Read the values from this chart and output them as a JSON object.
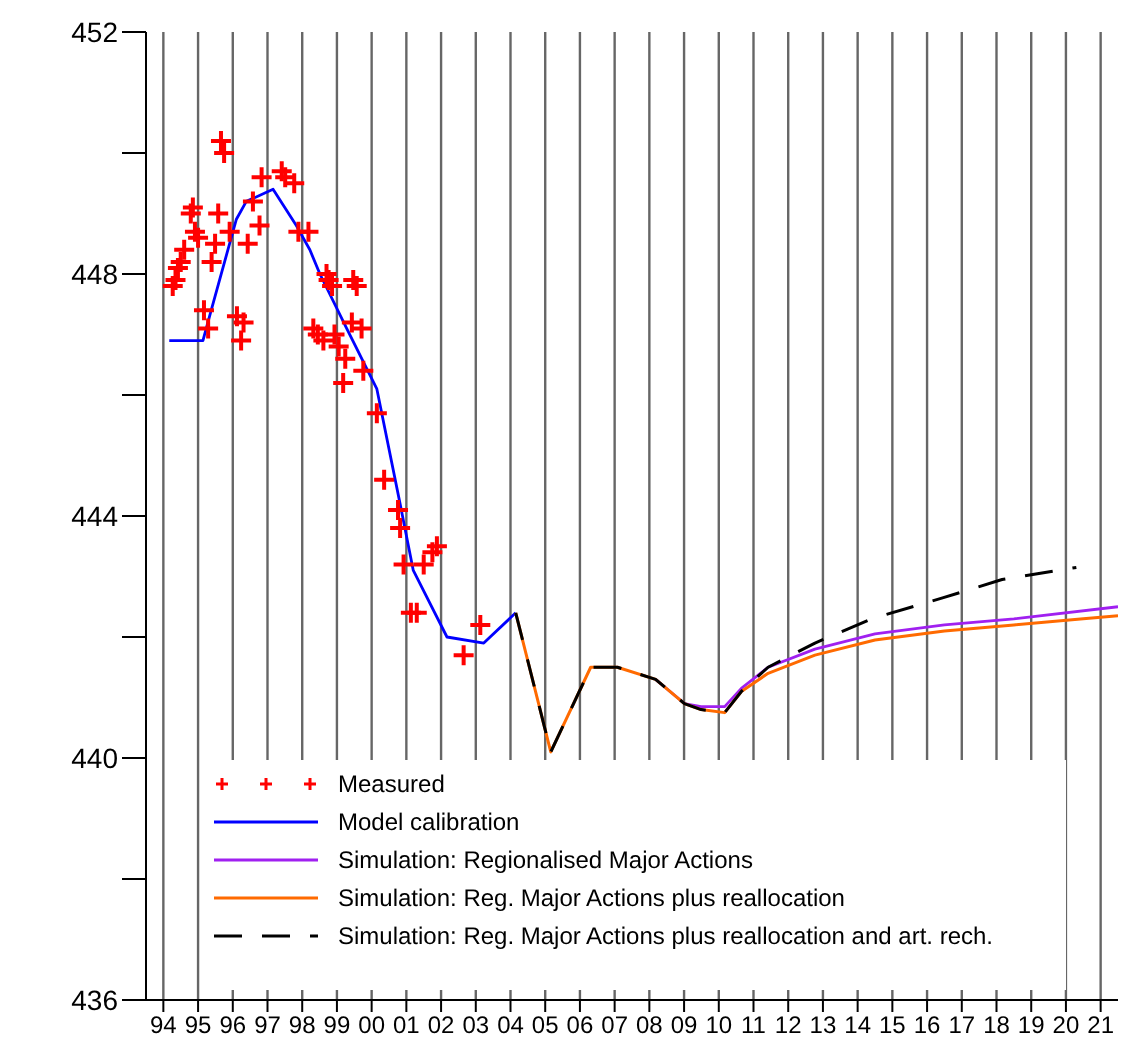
{
  "chart_data": {
    "type": "line",
    "xlim": [
      1993.5,
      2021.5
    ],
    "xticks": [
      {
        "value": 1994,
        "label": "94"
      },
      {
        "value": 1995,
        "label": "95"
      },
      {
        "value": 1996,
        "label": "96"
      },
      {
        "value": 1997,
        "label": "97"
      },
      {
        "value": 1998,
        "label": "98"
      },
      {
        "value": 1999,
        "label": "99"
      },
      {
        "value": 2000,
        "label": "00"
      },
      {
        "value": 2001,
        "label": "01"
      },
      {
        "value": 2002,
        "label": "02"
      },
      {
        "value": 2003,
        "label": "03"
      },
      {
        "value": 2004,
        "label": "04"
      },
      {
        "value": 2005,
        "label": "05"
      },
      {
        "value": 2006,
        "label": "06"
      },
      {
        "value": 2007,
        "label": "07"
      },
      {
        "value": 2008,
        "label": "08"
      },
      {
        "value": 2009,
        "label": "09"
      },
      {
        "value": 2010,
        "label": "10"
      },
      {
        "value": 2011,
        "label": "11"
      },
      {
        "value": 2012,
        "label": "12"
      },
      {
        "value": 2013,
        "label": "13"
      },
      {
        "value": 2014,
        "label": "14"
      },
      {
        "value": 2015,
        "label": "15"
      },
      {
        "value": 2016,
        "label": "16"
      },
      {
        "value": 2017,
        "label": "17"
      },
      {
        "value": 2018,
        "label": "18"
      },
      {
        "value": 2019,
        "label": "19"
      },
      {
        "value": 2020,
        "label": "20"
      },
      {
        "value": 2021,
        "label": "21"
      }
    ],
    "ylim": [
      436,
      452
    ],
    "yticks": [
      436,
      {
        "value": 438,
        "label": null
      },
      440,
      {
        "value": 442,
        "label": null
      },
      444,
      {
        "value": 446,
        "label": null
      },
      448,
      {
        "value": 450,
        "label": null
      },
      452
    ],
    "grid": "x",
    "legend": "bottom",
    "series": [
      {
        "name": "Measured",
        "type": "scatter",
        "marker": "cross",
        "color": "#ff0000",
        "x": [
          1995.66,
          1995.75,
          1994.27,
          1994.35,
          1994.42,
          1994.5,
          1994.6,
          1994.85,
          1994.79,
          1994.91,
          1995.0,
          1995.58,
          1995.49,
          1995.39,
          1995.17,
          1995.29,
          1996.12,
          1996.31,
          1996.24,
          1995.91,
          1996.43,
          1996.58,
          1996.77,
          1996.83,
          1997.41,
          1997.51,
          1997.77,
          1997.89,
          1998.18,
          1998.7,
          1998.76,
          1998.86,
          1999.47,
          1999.57,
          1998.32,
          1998.45,
          1998.61,
          1998.93,
          1999.05,
          1999.43,
          1999.71,
          1999.24,
          1999.76,
          1999.18,
          2000.15,
          2000.36,
          2000.76,
          2000.82,
          2000.92,
          2001.5,
          2001.75,
          2001.88,
          2001.13,
          2001.3,
          2002.65,
          2003.13
        ],
        "values": [
          450.2,
          450.0,
          447.8,
          447.9,
          448.1,
          448.2,
          448.4,
          449.1,
          449.0,
          448.7,
          448.6,
          449.0,
          448.5,
          448.2,
          447.4,
          447.1,
          447.3,
          447.2,
          446.9,
          448.7,
          448.5,
          449.2,
          448.8,
          449.6,
          449.7,
          449.6,
          449.5,
          448.7,
          448.7,
          448.0,
          447.9,
          447.8,
          447.9,
          447.8,
          447.1,
          447.0,
          446.9,
          447.0,
          446.8,
          447.2,
          447.1,
          446.6,
          446.4,
          446.2,
          445.7,
          444.6,
          444.1,
          443.8,
          443.2,
          443.2,
          443.4,
          443.5,
          442.4,
          442.4,
          441.7,
          442.2
        ]
      },
      {
        "name": "Model calibration",
        "color": "#0000ff",
        "x": [
          1994.17,
          1995.14,
          1995.33,
          1996.1,
          1996.39,
          1997.16,
          1997.83,
          1998.22,
          1998.51,
          1999.28,
          2000.15,
          2000.82,
          2001.2,
          2002.17,
          2003.23,
          2004.15
        ],
        "values": [
          446.9,
          446.9,
          447.3,
          448.9,
          449.2,
          449.4,
          448.8,
          448.4,
          448.0,
          447.1,
          446.1,
          444.2,
          443.1,
          442.0,
          441.9,
          442.4
        ]
      },
      {
        "name": "Simulation: Regionalised Major Actions",
        "color": "#a020f0",
        "x": [
          2008.18,
          2009.01,
          2009.49,
          2010.17,
          2010.65,
          2011.42,
          2012.77,
          2014.5,
          2016.5,
          2018.5,
          2021.5
        ],
        "values": [
          441.3,
          440.9,
          440.85,
          440.85,
          441.15,
          441.5,
          441.8,
          442.05,
          442.2,
          442.3,
          442.5
        ]
      },
      {
        "name": "Simulation: Reg. Major Actions plus reallocation",
        "color": "#ff6a00",
        "x": [
          2004.15,
          2005.16,
          2006.31,
          2007.08,
          2008.18,
          2009.01,
          2009.49,
          2010.17,
          2010.65,
          2011.42,
          2012.77,
          2014.5,
          2016.5,
          2018.5,
          2020.5,
          2021.5
        ],
        "values": [
          442.4,
          440.1,
          441.5,
          441.5,
          441.3,
          440.9,
          440.8,
          440.75,
          441.1,
          441.4,
          441.7,
          441.95,
          442.1,
          442.2,
          442.3,
          442.35
        ]
      },
      {
        "name": "Simulation: Reg. Major Actions plus reallocation and art. rech.",
        "line_style": "dashed",
        "color": "#000000",
        "x": [
          2004.15,
          2005.16,
          2006.31,
          2007.08,
          2008.18,
          2009.01,
          2009.49,
          2010.17,
          2010.65,
          2011.42,
          2012.77,
          2014.4,
          2016.47,
          2018.16,
          2020.3
        ],
        "values": [
          442.4,
          440.1,
          441.5,
          441.5,
          441.3,
          440.9,
          440.8,
          440.75,
          441.1,
          441.5,
          441.9,
          442.3,
          442.65,
          442.95,
          443.15
        ]
      }
    ]
  }
}
